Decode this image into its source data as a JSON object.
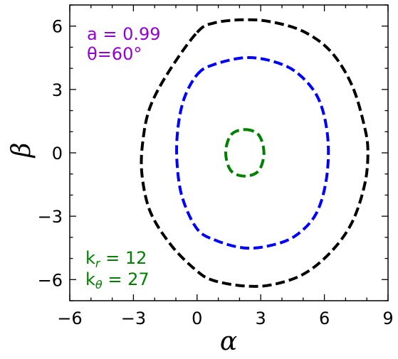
{
  "chart_data": {
    "type": "line",
    "xlabel": "α",
    "ylabel": "β",
    "xlim": [
      -6,
      9
    ],
    "ylim": [
      -7,
      7
    ],
    "xticks": [
      -6,
      -3,
      0,
      3,
      6,
      9
    ],
    "xtick_labels": [
      "−6",
      "−3",
      "0",
      "3",
      "6",
      "9"
    ],
    "yticks": [
      -6,
      -3,
      0,
      3,
      6
    ],
    "ytick_labels": [
      "−6",
      "−3",
      "0",
      "3",
      "6"
    ],
    "grid": false,
    "annotations": [
      {
        "text": "a = 0.99",
        "color": "#9400d3",
        "position": "top-left"
      },
      {
        "text": "θ=60°",
        "color": "#9400d3",
        "position": "top-left"
      },
      {
        "text": "kr = 12",
        "color": "#008000",
        "position": "bottom-left"
      },
      {
        "text": "kθ = 27",
        "color": "#008000",
        "position": "bottom-left"
      }
    ],
    "series": [
      {
        "color": "#000000",
        "style": "dashed",
        "points": [
          [
            0,
            5.7
          ],
          [
            0.8,
            6.15
          ],
          [
            2.2,
            6.3
          ],
          [
            3.5,
            6.2
          ],
          [
            5,
            5.75
          ],
          [
            6.3,
            4.8
          ],
          [
            7.3,
            3.2
          ],
          [
            7.9,
            1.2
          ],
          [
            8.05,
            0
          ],
          [
            7.9,
            -1.5
          ],
          [
            7.3,
            -3.3
          ],
          [
            6.3,
            -4.7
          ],
          [
            5,
            -5.75
          ],
          [
            3.5,
            -6.25
          ],
          [
            2.2,
            -6.3
          ],
          [
            0.8,
            -6.05
          ],
          [
            0,
            -5.6
          ],
          [
            -1.2,
            -4.4
          ],
          [
            -2.2,
            -2.8
          ],
          [
            -2.6,
            -1
          ],
          [
            -2.55,
            0.6
          ],
          [
            -2.2,
            2.2
          ],
          [
            -1.3,
            3.9
          ]
        ]
      },
      {
        "color": "#0000ff",
        "style": "dashed",
        "points": [
          [
            0,
            3.7
          ],
          [
            0.7,
            4.15
          ],
          [
            2.2,
            4.5
          ],
          [
            3.5,
            4.35
          ],
          [
            4.7,
            3.8
          ],
          [
            5.7,
            2.6
          ],
          [
            6.15,
            0.8
          ],
          [
            6.1,
            -1.2
          ],
          [
            5.6,
            -2.9
          ],
          [
            4.6,
            -3.95
          ],
          [
            3.4,
            -4.4
          ],
          [
            2.2,
            -4.5
          ],
          [
            0.9,
            -4.15
          ],
          [
            0,
            -3.6
          ],
          [
            -0.7,
            -2.1
          ],
          [
            -0.95,
            -0.4
          ],
          [
            -0.9,
            1.2
          ],
          [
            -0.6,
            2.6
          ]
        ]
      },
      {
        "color": "#008000",
        "style": "dashed",
        "points": [
          [
            2.25,
            1.1
          ],
          [
            2.9,
            0.85
          ],
          [
            3.15,
            0
          ],
          [
            2.9,
            -0.85
          ],
          [
            2.25,
            -1.1
          ],
          [
            1.6,
            -0.85
          ],
          [
            1.35,
            0
          ],
          [
            1.6,
            0.85
          ]
        ]
      }
    ]
  }
}
